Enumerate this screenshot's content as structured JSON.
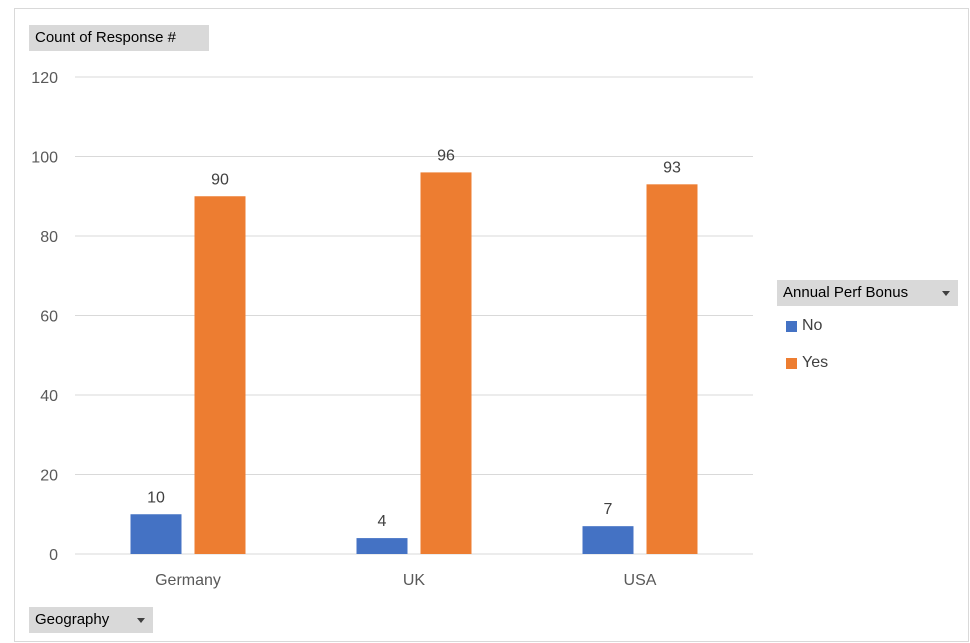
{
  "pivot_fields": {
    "value_field": "Count of Response #",
    "legend_field": "Annual Perf Bonus",
    "axis_field": "Geography"
  },
  "colors": {
    "no": "#4472c4",
    "yes": "#ed7d31",
    "gridline": "#d9d9d9",
    "tick_text": "#595959",
    "label_text": "#404040"
  },
  "chart_data": {
    "type": "bar",
    "categories": [
      "Germany",
      "UK",
      "USA"
    ],
    "series": [
      {
        "name": "No",
        "values": [
          10,
          4,
          7
        ]
      },
      {
        "name": "Yes",
        "values": [
          90,
          96,
          93
        ]
      }
    ],
    "ylim": [
      0,
      120
    ],
    "yticks": [
      0,
      20,
      40,
      60,
      80,
      100,
      120
    ],
    "grid": true,
    "legend_position": "right",
    "data_labels": true
  }
}
